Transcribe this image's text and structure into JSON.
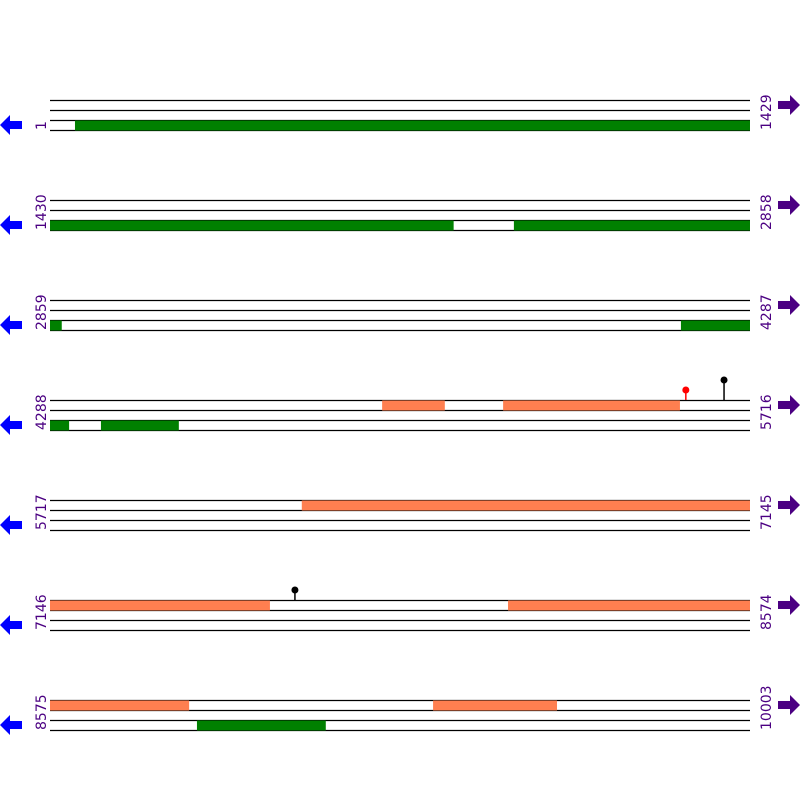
{
  "colors": {
    "forward": "#ff7f50",
    "reverse": "#008000",
    "line": "#000000",
    "label": "#4b0082",
    "left_arrow": "#0000ff",
    "right_arrow": "#4b0082",
    "marker_red": "#ff0000",
    "marker_black": "#000000"
  },
  "rows": [
    {
      "start": 1,
      "end": 1429,
      "start_label": "1",
      "end_label": "1429"
    },
    {
      "start": 1430,
      "end": 2858,
      "start_label": "1430",
      "end_label": "2858"
    },
    {
      "start": 2859,
      "end": 4287,
      "start_label": "2859",
      "end_label": "4287"
    },
    {
      "start": 4288,
      "end": 5716,
      "start_label": "4288",
      "end_label": "5716"
    },
    {
      "start": 5717,
      "end": 7145,
      "start_label": "5717",
      "end_label": "7145"
    },
    {
      "start": 7146,
      "end": 8574,
      "start_label": "7146",
      "end_label": "8574"
    },
    {
      "start": 8575,
      "end": 10003,
      "start_label": "8575",
      "end_label": "10003"
    }
  ],
  "features": [
    {
      "strand": "reverse",
      "start": 52,
      "end": 1429
    },
    {
      "strand": "reverse",
      "start": 1430,
      "end": 2254
    },
    {
      "strand": "reverse",
      "start": 2377,
      "end": 2858
    },
    {
      "strand": "reverse",
      "start": 2859,
      "end": 2883
    },
    {
      "strand": "reverse",
      "start": 4147,
      "end": 4287
    },
    {
      "strand": "forward",
      "start": 4966,
      "end": 5094
    },
    {
      "strand": "forward",
      "start": 5213,
      "end": 5574
    },
    {
      "strand": "reverse",
      "start": 4288,
      "end": 4327
    },
    {
      "strand": "reverse",
      "start": 4392,
      "end": 4551
    },
    {
      "strand": "forward",
      "start": 6231,
      "end": 7145
    },
    {
      "strand": "forward",
      "start": 7146,
      "end": 7595
    },
    {
      "strand": "forward",
      "start": 8081,
      "end": 8574
    },
    {
      "strand": "forward",
      "start": 8575,
      "end": 8859
    },
    {
      "strand": "forward",
      "start": 9357,
      "end": 9610
    },
    {
      "strand": "reverse",
      "start": 8875,
      "end": 9138
    }
  ],
  "markers": [
    {
      "position": 5586,
      "color": "red",
      "level": "short"
    },
    {
      "position": 5664,
      "color": "black",
      "level": "tall"
    },
    {
      "position": 7646,
      "color": "black",
      "level": "short"
    }
  ]
}
